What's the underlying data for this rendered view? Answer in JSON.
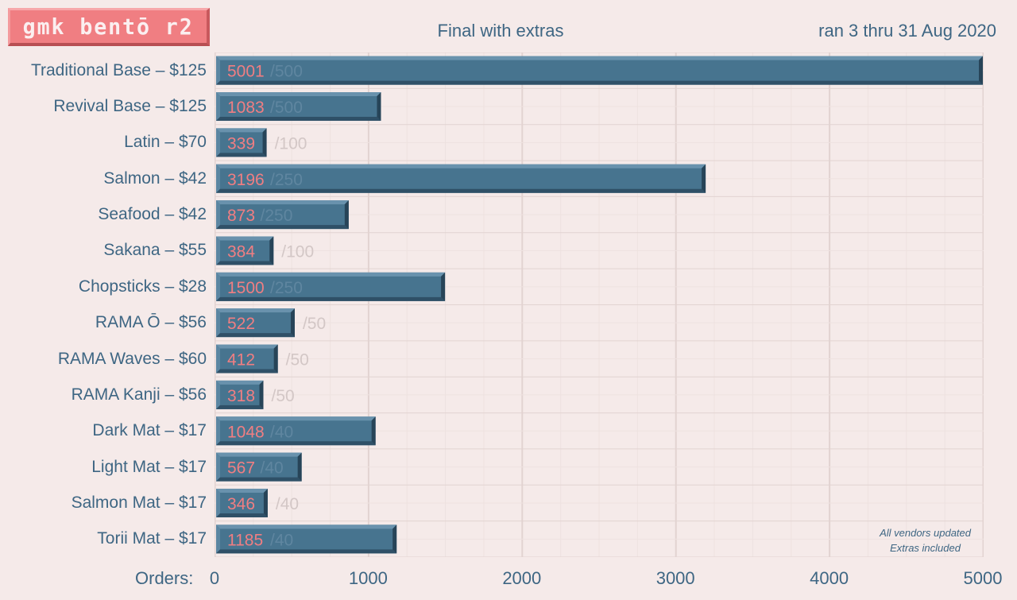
{
  "header": {
    "logo_text": "gmk bentō r2",
    "title": "Final with extras",
    "date_range": "ran 3 thru 31 Aug 2020"
  },
  "note": {
    "line1": "All vendors updated",
    "line2": "Extras included"
  },
  "colors": {
    "background": "#f5eae9",
    "bar_face": "#47748f",
    "bar_top": "#6992ad",
    "bar_bottom": "#2f5067",
    "value_text": "#f07e82",
    "moq_text": "#5f86a0",
    "grid_major": "#e2d3d1",
    "grid_minor": "#eee2e0",
    "text": "#3e6683",
    "logo_bg": "#f07e82"
  },
  "chart_data": {
    "type": "bar",
    "orientation": "horizontal",
    "title": "Final with extras",
    "xlabel": "Orders:",
    "xlim": [
      0,
      5000
    ],
    "xticks": [
      0,
      1000,
      2000,
      3000,
      4000,
      5000
    ],
    "grid": true,
    "categories": [
      "Traditional Base – $125",
      "Revival Base – $125",
      "Latin – $70",
      "Salmon – $42",
      "Seafood – $42",
      "Sakana – $55",
      "Chopsticks – $28",
      "RAMA Ō – $56",
      "RAMA Waves – $60",
      "RAMA Kanji – $56",
      "Dark Mat – $17",
      "Light Mat – $17",
      "Salmon Mat – $17",
      "Torii Mat – $17"
    ],
    "values": [
      5001,
      1083,
      339,
      3196,
      873,
      384,
      1500,
      522,
      412,
      318,
      1048,
      567,
      346,
      1185
    ],
    "moq_labels": [
      "/500",
      "/500",
      "/100",
      "/250",
      "/250",
      "/100",
      "/250",
      "/50",
      "/50",
      "/50",
      "/40",
      "/40",
      "/40",
      "/40"
    ]
  }
}
